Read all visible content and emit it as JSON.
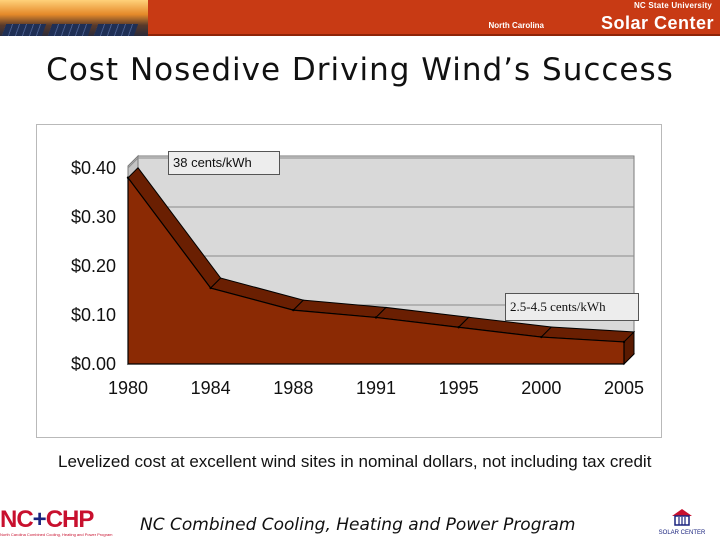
{
  "header": {
    "university": "NC State University",
    "org_prefix": "North Carolina",
    "org_name": "Solar Center"
  },
  "title": "Cost Nosedive Driving Wind’s Success",
  "chart_data": {
    "type": "area",
    "categories": [
      "1980",
      "1984",
      "1988",
      "1991",
      "1995",
      "2000",
      "2005"
    ],
    "values": [
      0.38,
      0.155,
      0.11,
      0.095,
      0.075,
      0.055,
      0.045
    ],
    "y_ticks": [
      "$0.00",
      "$0.10",
      "$0.20",
      "$0.30",
      "$0.40"
    ],
    "y_tick_values": [
      0,
      0.1,
      0.2,
      0.3,
      0.4
    ],
    "ylim": [
      0,
      0.4
    ],
    "grid": true,
    "annotations": [
      "38 cents/kWh",
      "2.5-4.5 cents/kWh"
    ],
    "fill_color": "#8b2a04",
    "top_color": "#6a1f02",
    "plot_bg": "#d9d9d9"
  },
  "note": "Levelized cost at excellent wind sites in nominal dollars, not including tax credit",
  "footer": {
    "program": "NC Combined Cooling, Heating and Power Program",
    "logo_left_main": "NC",
    "logo_left_plus": "+",
    "logo_left_end": "CHP",
    "logo_left_sub": "North Carolina Combined Cooling, Heating and Power Program",
    "logo_right_text": "SOLAR CENTER"
  }
}
